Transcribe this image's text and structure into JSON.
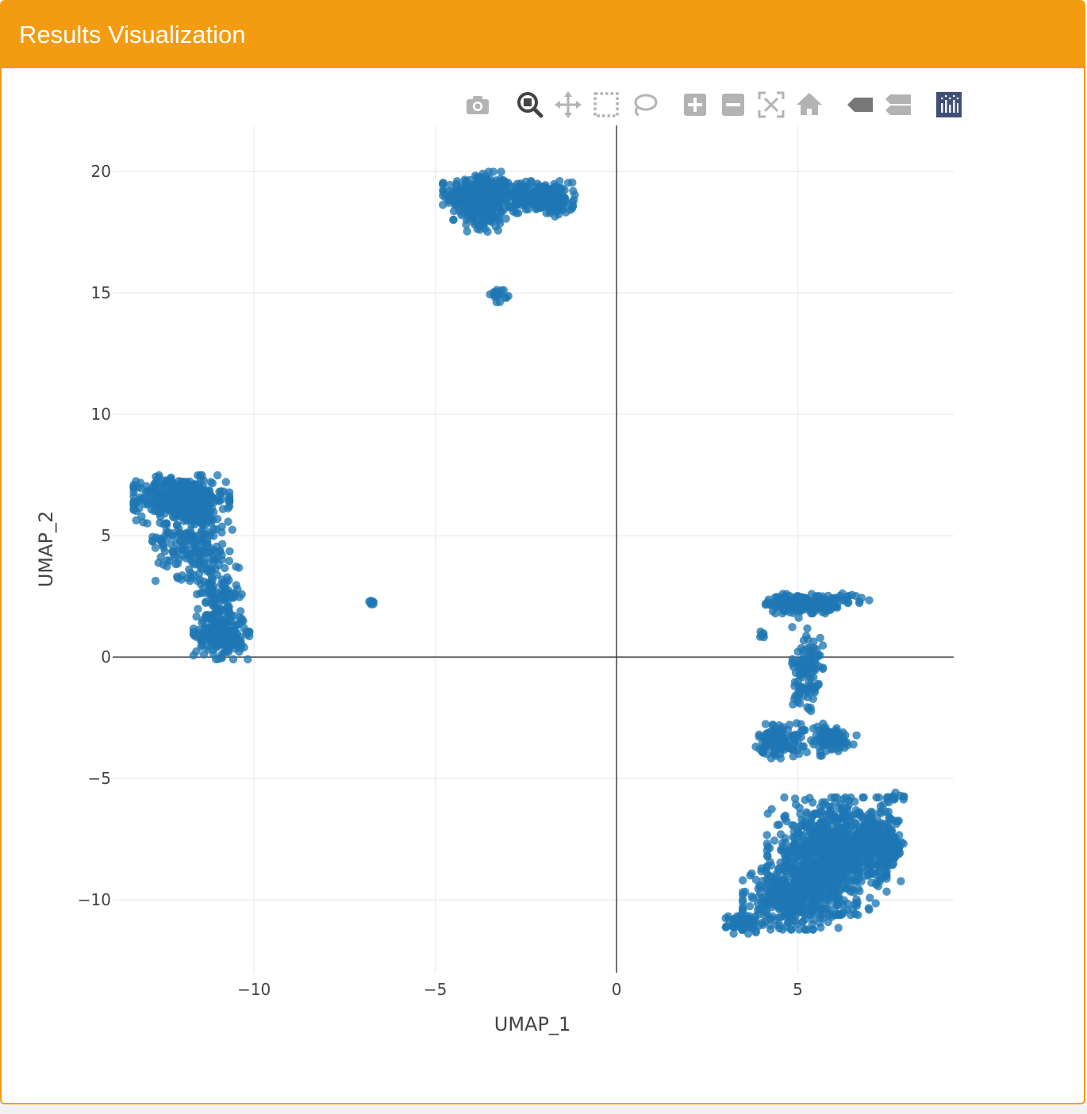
{
  "panel": {
    "title": "Results Visualization"
  },
  "modebar": {
    "buttons": [
      {
        "name": "camera-icon",
        "tooltip": "Download plot as a png"
      },
      {
        "name": "zoom-icon",
        "tooltip": "Zoom",
        "active": true
      },
      {
        "name": "pan-icon",
        "tooltip": "Pan"
      },
      {
        "name": "box-select-icon",
        "tooltip": "Box Select"
      },
      {
        "name": "lasso-select-icon",
        "tooltip": "Lasso Select"
      },
      {
        "name": "zoom-in-icon",
        "tooltip": "Zoom in"
      },
      {
        "name": "zoom-out-icon",
        "tooltip": "Zoom out"
      },
      {
        "name": "autoscale-icon",
        "tooltip": "Autoscale"
      },
      {
        "name": "reset-axes-icon",
        "tooltip": "Reset axes"
      },
      {
        "name": "hover-closest-icon",
        "tooltip": "Show closest data on hover"
      },
      {
        "name": "hover-compare-icon",
        "tooltip": "Compare data on hover"
      },
      {
        "name": "plotly-logo-icon",
        "tooltip": "Produced with Plotly"
      }
    ]
  },
  "chart_data": {
    "type": "scatter",
    "xlabel": "UMAP_1",
    "ylabel": "UMAP_2",
    "xlim": [
      -13.9,
      9.3
    ],
    "ylim": [
      -13,
      21.9
    ],
    "xticks": [
      -10,
      -5,
      0,
      5
    ],
    "yticks": [
      -10,
      -5,
      0,
      5,
      10,
      15,
      20
    ],
    "xtick_labels": [
      "−10",
      "−5",
      "0",
      "5"
    ],
    "ytick_labels": [
      "−10",
      "−5",
      "0",
      "5",
      "10",
      "15",
      "20"
    ],
    "grid": true,
    "zero_lines": true,
    "marker_color": "#1f77b4",
    "series": [
      {
        "clusters": [
          {
            "cx": -3.8,
            "cy": 19.0,
            "sx": 0.45,
            "sy": 0.45,
            "n": 320
          },
          {
            "cx": -2.3,
            "cy": 18.95,
            "sx": 0.5,
            "sy": 0.3,
            "n": 180
          },
          {
            "cx": -1.7,
            "cy": 18.7,
            "sx": 0.25,
            "sy": 0.25,
            "n": 60
          },
          {
            "cx": -3.6,
            "cy": 18.1,
            "sx": 0.25,
            "sy": 0.3,
            "n": 50
          },
          {
            "cx": -3.25,
            "cy": 14.95,
            "sx": 0.12,
            "sy": 0.15,
            "n": 18
          },
          {
            "cx": -12.0,
            "cy": 6.5,
            "sx": 0.6,
            "sy": 0.45,
            "n": 420
          },
          {
            "cx": -11.7,
            "cy": 4.9,
            "sx": 0.5,
            "sy": 0.8,
            "n": 200
          },
          {
            "cx": -11.0,
            "cy": 2.6,
            "sx": 0.3,
            "sy": 0.8,
            "n": 130
          },
          {
            "cx": -10.9,
            "cy": 0.9,
            "sx": 0.35,
            "sy": 0.45,
            "n": 200
          },
          {
            "cx": -6.75,
            "cy": 2.25,
            "sx": 0.05,
            "sy": 0.05,
            "n": 8
          },
          {
            "cx": 5.1,
            "cy": 2.2,
            "sx": 0.45,
            "sy": 0.18,
            "n": 200
          },
          {
            "cx": 6.2,
            "cy": 2.4,
            "sx": 0.35,
            "sy": 0.1,
            "n": 25
          },
          {
            "cx": 4.05,
            "cy": 0.95,
            "sx": 0.08,
            "sy": 0.06,
            "n": 6
          },
          {
            "cx": 5.25,
            "cy": -0.8,
            "sx": 0.2,
            "sy": 1.1,
            "n": 120
          },
          {
            "cx": 4.5,
            "cy": -3.4,
            "sx": 0.3,
            "sy": 0.35,
            "n": 110
          },
          {
            "cx": 5.85,
            "cy": -3.4,
            "sx": 0.35,
            "sy": 0.3,
            "n": 90
          },
          {
            "cx": 5.8,
            "cy": -8.2,
            "sx": 0.75,
            "sy": 1.1,
            "n": 750
          },
          {
            "cx": 7.1,
            "cy": -7.8,
            "sx": 0.45,
            "sy": 0.65,
            "n": 260
          },
          {
            "cx": 4.8,
            "cy": -9.9,
            "sx": 0.6,
            "sy": 0.6,
            "n": 330
          },
          {
            "cx": 3.55,
            "cy": -10.95,
            "sx": 0.25,
            "sy": 0.2,
            "n": 70
          },
          {
            "cx": 7.7,
            "cy": -5.8,
            "sx": 0.15,
            "sy": 0.1,
            "n": 14
          }
        ]
      }
    ]
  }
}
